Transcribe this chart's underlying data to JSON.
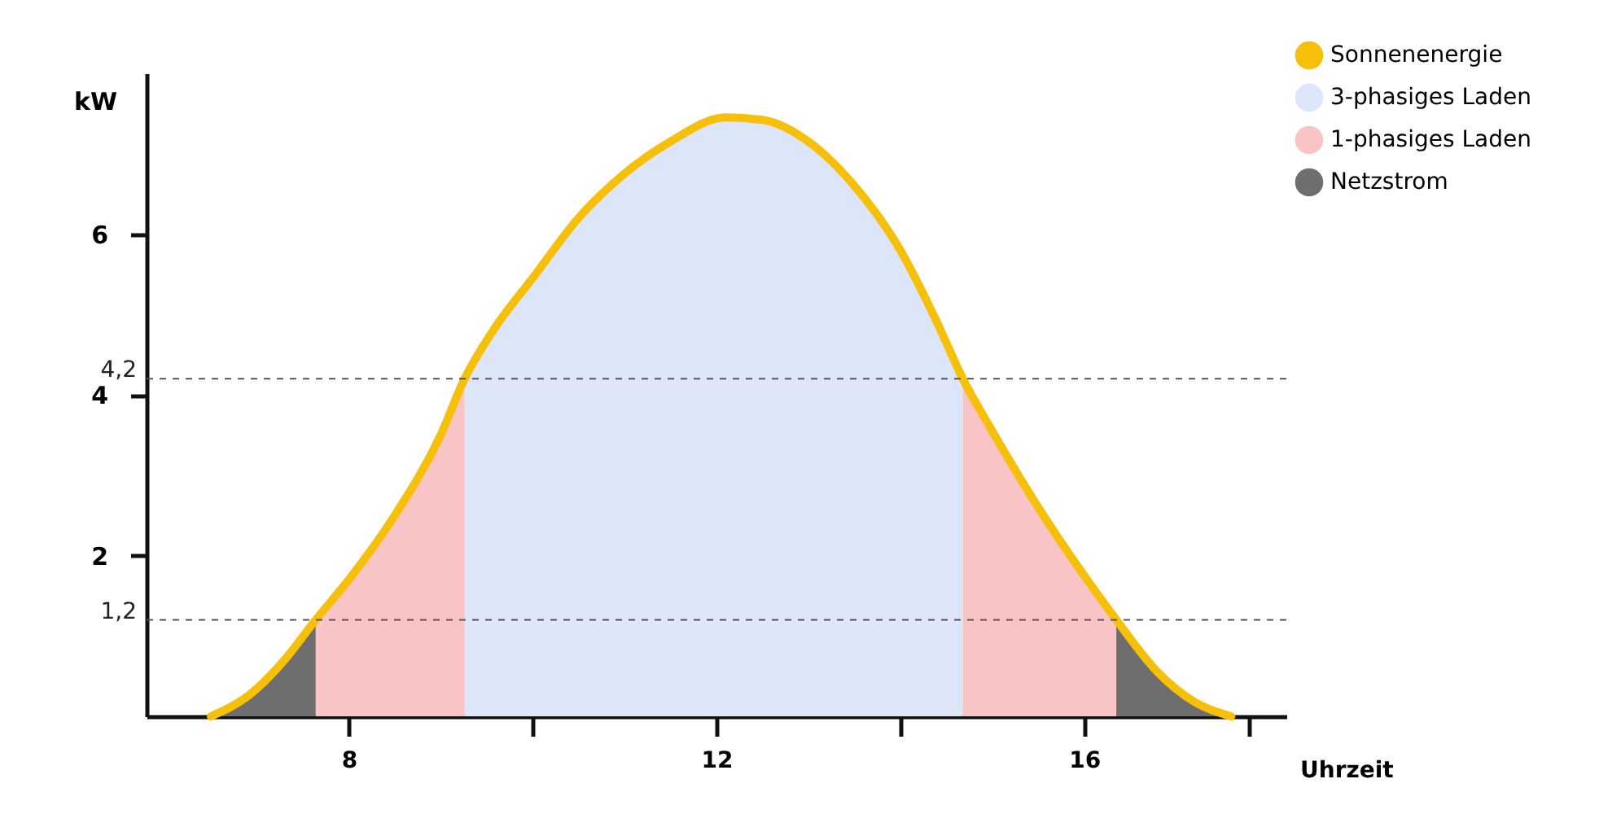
{
  "chart_data": {
    "type": "area",
    "xlabel": "Uhrzeit",
    "ylabel": "kW",
    "xlim": [
      5.8,
      18.2
    ],
    "ylim": [
      0,
      8
    ],
    "xticks": [
      8,
      {
        "value": 10,
        "label": null
      },
      12,
      {
        "value": 14,
        "label": null
      },
      16,
      {
        "value": 17.8,
        "label": null
      }
    ],
    "yticks": [
      2,
      4,
      6
    ],
    "grid": false,
    "legend": "top right",
    "ref_lines": [
      {
        "axis": "y",
        "value": 4.2,
        "label": "4,2",
        "color": "#555555",
        "line_style": "dashed"
      },
      {
        "axis": "y",
        "value": 1.2,
        "label": "1,2",
        "color": "#555555",
        "line_style": "dashed"
      }
    ],
    "series": [
      {
        "name": "Sonnenenergie",
        "type": "line",
        "color": "#f5bf0a",
        "x": [
          6.5,
          6.9,
          7.3,
          7.64,
          8,
          8.5,
          9,
          9.26,
          9.6,
          10,
          10.5,
          11,
          11.5,
          12.1,
          12.5,
          13,
          13.5,
          14,
          14.4,
          14.68,
          15,
          15.5,
          16,
          16.35,
          16.8,
          17.2,
          17.6
        ],
        "values": [
          0,
          0.25,
          0.7,
          1.2,
          1.7,
          2.5,
          3.5,
          4.2,
          4.85,
          5.45,
          6.2,
          6.75,
          7.15,
          7.45,
          7.42,
          7.15,
          6.6,
          5.8,
          4.9,
          4.2,
          3.55,
          2.6,
          1.75,
          1.2,
          0.55,
          0.18,
          0
        ]
      },
      {
        "name": "3-phasiges Laden",
        "color": "#dde6f8",
        "x": [
          9.26,
          9.6,
          10,
          10.5,
          11,
          11.5,
          12.1,
          12.5,
          13,
          13.5,
          14,
          14.4,
          14.68
        ],
        "values": [
          4.2,
          4.85,
          5.45,
          6.2,
          6.75,
          7.15,
          7.45,
          7.42,
          7.15,
          6.6,
          5.8,
          4.9,
          4.2
        ]
      },
      {
        "name": "1-phasiges Laden",
        "color": "#f9c4c6",
        "x": [
          7.64,
          8,
          8.5,
          9,
          9.26,
          12,
          14.68,
          15,
          15.5,
          16,
          16.35
        ],
        "values": [
          1.2,
          1.7,
          2.5,
          3.5,
          4.2,
          null,
          4.2,
          3.55,
          2.6,
          1.75,
          1.2
        ]
      },
      {
        "name": "Netzstrom",
        "color": "#6e6e6e",
        "x": [
          6.5,
          6.9,
          7.3,
          7.64,
          12,
          16.35,
          16.8,
          17.2,
          17.6
        ],
        "values": [
          0,
          0.25,
          0.7,
          1.2,
          null,
          1.2,
          0.55,
          0.18,
          0
        ]
      }
    ]
  }
}
